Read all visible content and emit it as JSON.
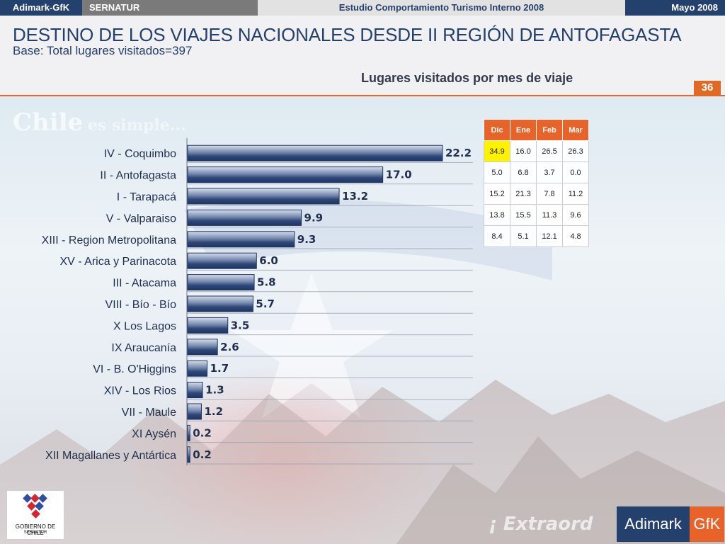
{
  "topbar": {
    "brand": "Adimark-GfK",
    "client": "SERNATUR",
    "study": "Estudio Comportamiento Turismo Interno 2008",
    "date": "Mayo 2008"
  },
  "header": {
    "title": "DESTINO DE LOS VIAJES NACIONALES DESDE II REGIÓN DE ANTOFAGASTA",
    "subtitle": "Base: Total lugares visitados=397",
    "page_number": "36"
  },
  "colors": {
    "navy": "#24416e",
    "orange": "#e8632a",
    "highlight": "#fff200"
  },
  "chart_data": {
    "type": "bar",
    "orientation": "horizontal",
    "title": "Lugares visitados por mes de viaje",
    "categories": [
      "IV - Coquimbo",
      "II - Antofagasta",
      "I - Tarapacá",
      "V - Valparaiso",
      "XIII - Region Metropolitana",
      "XV - Arica y Parinacota",
      "III - Atacama",
      "VIII - Bío - Bío",
      "X Los Lagos",
      "IX Araucanía",
      "VI - B. O'Higgins",
      "XIV - Los Rios",
      "VII - Maule",
      "XI Aysén",
      "XII Magallanes y Antártica"
    ],
    "values": [
      22.2,
      17.0,
      13.2,
      9.9,
      9.3,
      6.0,
      5.8,
      5.7,
      3.5,
      2.6,
      1.7,
      1.3,
      1.2,
      0.2,
      0.2
    ],
    "value_labels": [
      "22.2",
      "17.0",
      "13.2",
      "9.9",
      "9.3",
      "6.0",
      "5.8",
      "5.7",
      "3.5",
      "2.6",
      "1.7",
      "1.3",
      "1.2",
      "0.2",
      "0.2"
    ],
    "xlim": [
      0,
      22.2
    ],
    "grid": true,
    "legend": "none"
  },
  "month_table": {
    "headers": [
      "Dic",
      "Ene",
      "Feb",
      "Mar"
    ],
    "rows": [
      [
        "34.9",
        "16.0",
        "26.5",
        "26.3"
      ],
      [
        "5.0",
        "6.8",
        "3.7",
        "0.0"
      ],
      [
        "15.2",
        "21.3",
        "7.8",
        "11.2"
      ],
      [
        "13.8",
        "15.5",
        "11.3",
        "9.6"
      ],
      [
        "8.4",
        "5.1",
        "12.1",
        "4.8"
      ]
    ],
    "highlighted_cell": "34.9"
  },
  "logos": {
    "gov_line1": "GOBIERNO DE CHILE",
    "gov_line2": "SERNATUR",
    "adimark": "Adimark",
    "gfk": "GfK"
  }
}
